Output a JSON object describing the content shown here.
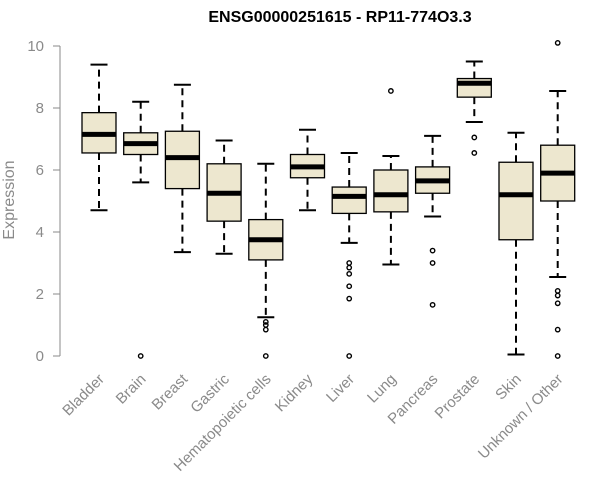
{
  "chart_data": {
    "type": "boxplot",
    "title": "ENSG00000251615 - RP11-774O3.3",
    "xlabel": "",
    "ylabel": "Expression",
    "ylim": [
      0,
      10
    ],
    "yticks": [
      0,
      2,
      4,
      6,
      8,
      10
    ],
    "grid": false,
    "legend": "none",
    "colors": {
      "box_fill": "#EDE7CF",
      "box_stroke": "#000000",
      "median": "#000000",
      "axis": "#8a8a8a",
      "text": "#8a8a8a"
    },
    "categories": [
      "Bladder",
      "Brain",
      "Breast",
      "Gastric",
      "Hematopoietic cells",
      "Kidney",
      "Liver",
      "Lung",
      "Pancreas",
      "Prostate",
      "Skin",
      "Unknown / Other"
    ],
    "boxes": [
      {
        "category": "Bladder",
        "whisker_low": 4.7,
        "q1": 6.55,
        "median": 7.15,
        "q3": 7.85,
        "whisker_high": 9.4,
        "outliers": []
      },
      {
        "category": "Brain",
        "whisker_low": 5.6,
        "q1": 6.5,
        "median": 6.85,
        "q3": 7.2,
        "whisker_high": 8.2,
        "outliers": [
          0
        ]
      },
      {
        "category": "Breast",
        "whisker_low": 3.35,
        "q1": 5.4,
        "median": 6.4,
        "q3": 7.25,
        "whisker_high": 8.75,
        "outliers": []
      },
      {
        "category": "Gastric",
        "whisker_low": 3.3,
        "q1": 4.35,
        "median": 5.25,
        "q3": 6.2,
        "whisker_high": 6.95,
        "outliers": []
      },
      {
        "category": "Hematopoietic cells",
        "whisker_low": 1.25,
        "q1": 3.1,
        "median": 3.75,
        "q3": 4.4,
        "whisker_high": 6.2,
        "outliers": [
          1.1,
          1.0,
          0.85,
          0
        ]
      },
      {
        "category": "Kidney",
        "whisker_low": 4.7,
        "q1": 5.75,
        "median": 6.1,
        "q3": 6.5,
        "whisker_high": 7.3,
        "outliers": []
      },
      {
        "category": "Liver",
        "whisker_low": 3.65,
        "q1": 4.6,
        "median": 5.15,
        "q3": 5.45,
        "whisker_high": 6.55,
        "outliers": [
          3.0,
          2.85,
          2.65,
          2.25,
          1.85,
          0
        ]
      },
      {
        "category": "Lung",
        "whisker_low": 2.95,
        "q1": 4.65,
        "median": 5.2,
        "q3": 6.0,
        "whisker_high": 6.45,
        "outliers": [
          8.55
        ]
      },
      {
        "category": "Pancreas",
        "whisker_low": 4.5,
        "q1": 5.25,
        "median": 5.65,
        "q3": 6.1,
        "whisker_high": 7.1,
        "outliers": [
          3.4,
          3.0,
          1.65
        ]
      },
      {
        "category": "Prostate",
        "whisker_low": 7.55,
        "q1": 8.35,
        "median": 8.8,
        "q3": 8.95,
        "whisker_high": 9.5,
        "outliers": [
          7.05,
          6.55
        ]
      },
      {
        "category": "Skin",
        "whisker_low": 0.05,
        "q1": 3.75,
        "median": 5.2,
        "q3": 6.25,
        "whisker_high": 7.2,
        "outliers": []
      },
      {
        "category": "Unknown / Other",
        "whisker_low": 2.55,
        "q1": 5.0,
        "median": 5.9,
        "q3": 6.8,
        "whisker_high": 8.55,
        "outliers": [
          10.1,
          2.1,
          1.95,
          1.7,
          0.85,
          0
        ]
      }
    ]
  }
}
